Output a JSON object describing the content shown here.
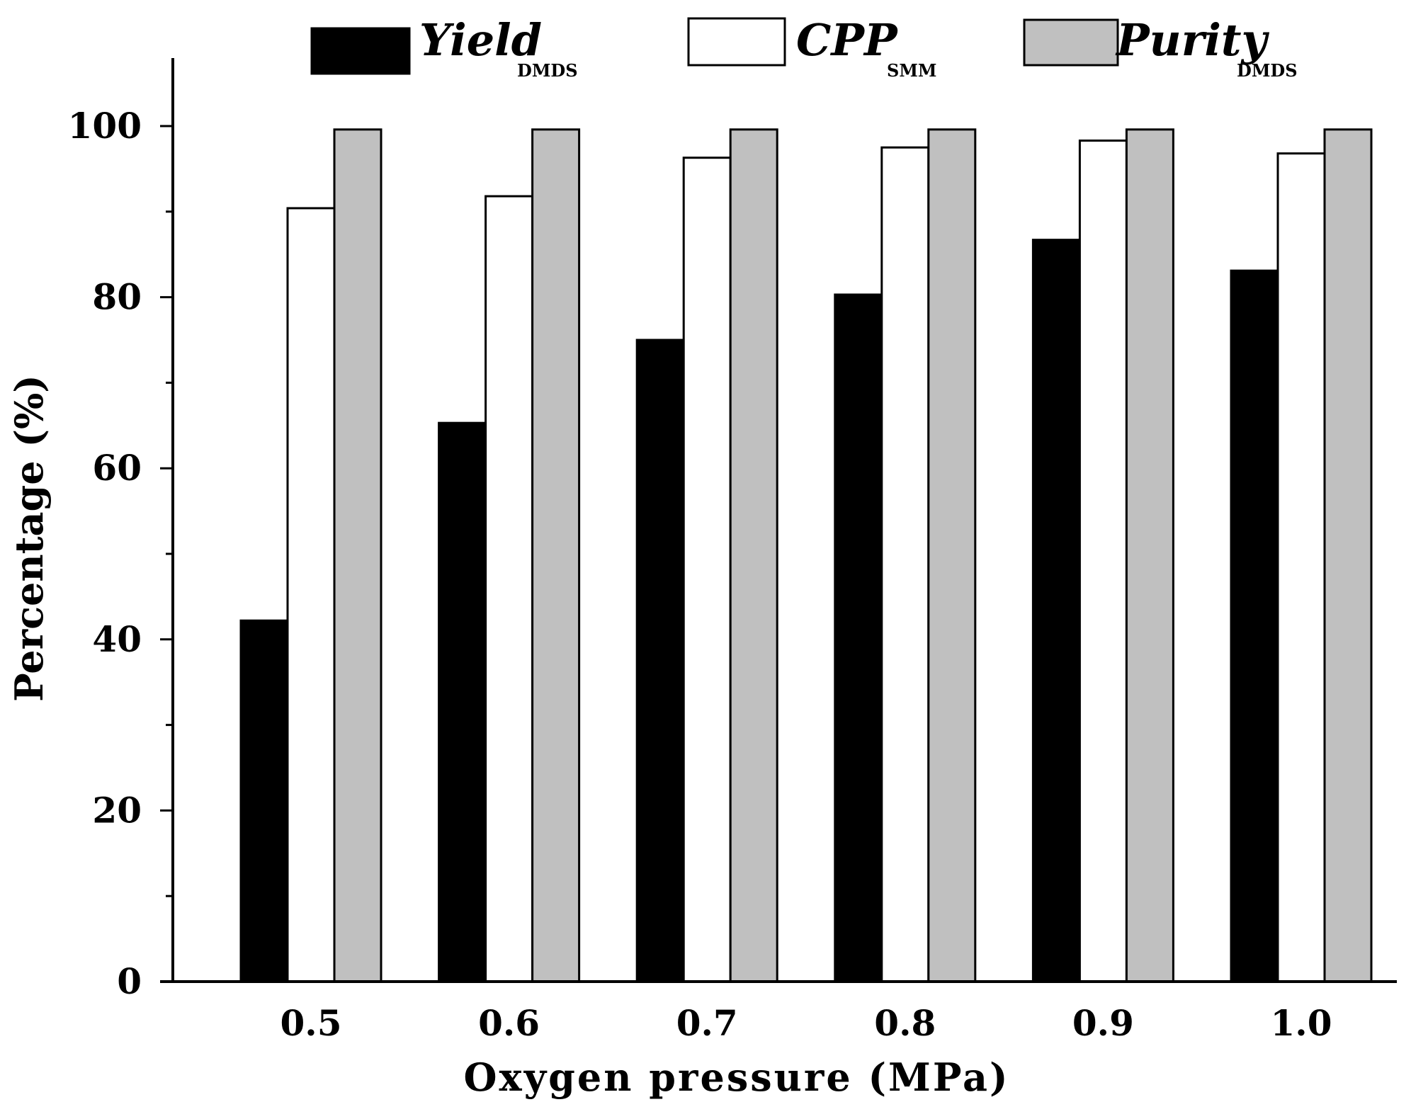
{
  "chart_data": {
    "type": "bar",
    "title": "",
    "xlabel": "Oxygen pressure (MPa)",
    "ylabel": "Percentage (%)",
    "categories": [
      "0.5",
      "0.6",
      "0.7",
      "0.8",
      "0.9",
      "1.0"
    ],
    "ylim": [
      0,
      108
    ],
    "yticks": [
      "0",
      "20",
      "40",
      "60",
      "80",
      "100"
    ],
    "grid": false,
    "legend_position": "top",
    "series": [
      {
        "name": "Yield",
        "subscript": "DMDS",
        "color": "#000000",
        "values": [
          42.2,
          65.3,
          75.0,
          80.3,
          86.7,
          83.1
        ]
      },
      {
        "name": "CPP",
        "subscript": "SMM",
        "color": "#ffffff",
        "values": [
          90.4,
          91.8,
          96.3,
          97.5,
          98.3,
          96.8
        ]
      },
      {
        "name": "Purity",
        "subscript": "DMDS",
        "color": "#c0c0c0",
        "values": [
          99.6,
          99.6,
          99.6,
          99.6,
          99.6,
          99.6
        ]
      }
    ]
  }
}
